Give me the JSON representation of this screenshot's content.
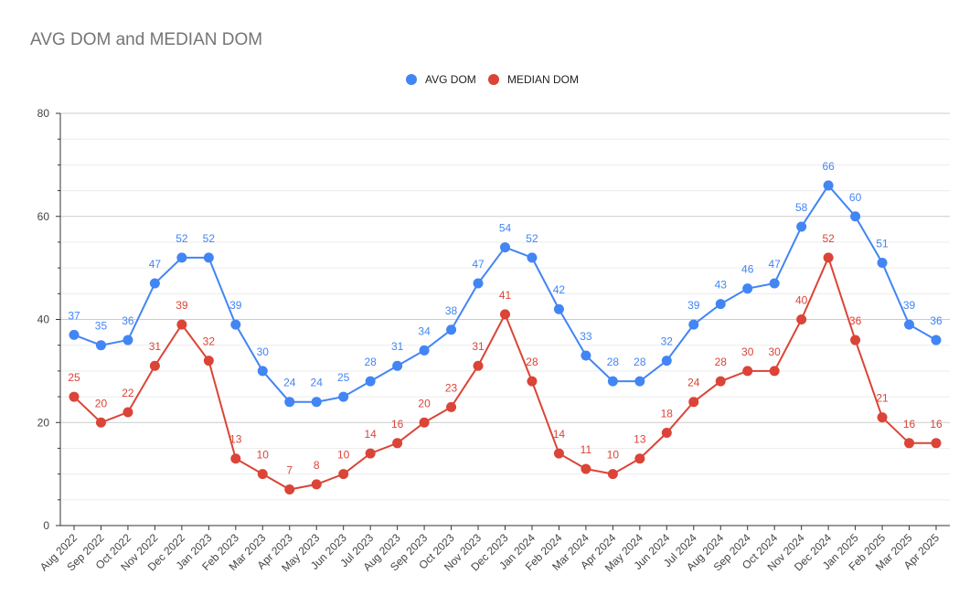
{
  "chart_data": {
    "type": "line",
    "title": "AVG DOM and MEDIAN DOM",
    "xlabel": "",
    "ylabel": "",
    "ylim": [
      0,
      80
    ],
    "yticks": [
      0,
      20,
      40,
      60,
      80
    ],
    "grid": true,
    "legend": "top-center",
    "categories": [
      "Aug 2022",
      "Sep 2022",
      "Oct 2022",
      "Nov 2022",
      "Dec 2022",
      "Jan 2023",
      "Feb 2023",
      "Mar 2023",
      "Apr 2023",
      "May 2023",
      "Jun 2023",
      "Jul 2023",
      "Aug 2023",
      "Sep 2023",
      "Oct 2023",
      "Nov 2023",
      "Dec 2023",
      "Jan 2024",
      "Feb 2024",
      "Mar 2024",
      "Apr 2024",
      "May 2024",
      "Jun 2024",
      "Jul 2024",
      "Aug 2024",
      "Sep 2024",
      "Oct 2024",
      "Nov 2024",
      "Dec 2024",
      "Jan 2025",
      "Feb 2025",
      "Mar 2025",
      "Apr 2025"
    ],
    "series": [
      {
        "name": "AVG DOM",
        "color": "#4285f4",
        "values": [
          37,
          35,
          36,
          47,
          52,
          52,
          39,
          30,
          24,
          24,
          25,
          28,
          31,
          34,
          38,
          47,
          54,
          52,
          42,
          33,
          28,
          28,
          32,
          39,
          43,
          46,
          47,
          58,
          66,
          60,
          51,
          39,
          36
        ]
      },
      {
        "name": "MEDIAN DOM",
        "color": "#db4437",
        "values": [
          25,
          20,
          22,
          31,
          39,
          32,
          13,
          10,
          7,
          8,
          10,
          14,
          16,
          20,
          23,
          31,
          41,
          28,
          14,
          11,
          10,
          13,
          18,
          24,
          28,
          30,
          30,
          40,
          52,
          36,
          21,
          16,
          16
        ]
      }
    ]
  }
}
